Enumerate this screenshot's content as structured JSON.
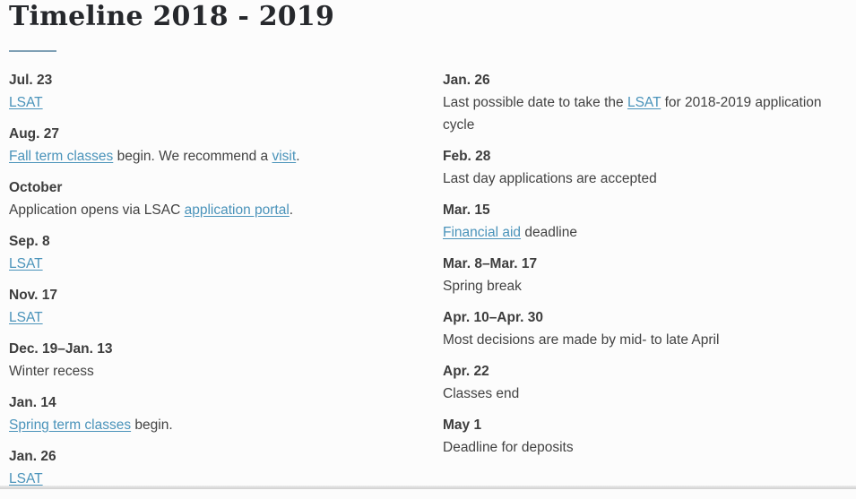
{
  "page": {
    "title": "Timeline 2018 - 2019",
    "colors": {
      "background": "#fcfcfc",
      "title": "#26282c",
      "link": "#4a93ba",
      "divider": "#7fa0b5",
      "text": "#424242"
    }
  },
  "timeline": {
    "columns": [
      {
        "entries": [
          {
            "date": "Jul. 23",
            "segments": [
              {
                "text": "LSAT",
                "link": true
              }
            ]
          },
          {
            "date": "Aug. 27",
            "segments": [
              {
                "text": "Fall term classes",
                "link": true
              },
              {
                "text": " begin. We recommend a ",
                "link": false
              },
              {
                "text": "visit",
                "link": true
              },
              {
                "text": ".",
                "link": false
              }
            ]
          },
          {
            "date": "October",
            "segments": [
              {
                "text": "Application opens via LSAC ",
                "link": false
              },
              {
                "text": "application portal",
                "link": true
              },
              {
                "text": ".",
                "link": false
              }
            ]
          },
          {
            "date": "Sep. 8",
            "segments": [
              {
                "text": "LSAT",
                "link": true
              }
            ]
          },
          {
            "date": "Nov. 17",
            "segments": [
              {
                "text": "LSAT",
                "link": true
              }
            ]
          },
          {
            "date": "Dec. 19–Jan. 13",
            "segments": [
              {
                "text": "Winter recess",
                "link": false
              }
            ]
          },
          {
            "date": "Jan. 14",
            "segments": [
              {
                "text": "Spring term classes",
                "link": true
              },
              {
                "text": " begin.",
                "link": false
              }
            ]
          },
          {
            "date": "Jan. 26",
            "segments": [
              {
                "text": "LSAT",
                "link": true
              }
            ]
          }
        ]
      },
      {
        "entries": [
          {
            "date": "Jan. 26",
            "segments": [
              {
                "text": "Last possible date to take the ",
                "link": false
              },
              {
                "text": "LSAT",
                "link": true
              },
              {
                "text": " for 2018-2019 application cycle",
                "link": false
              }
            ]
          },
          {
            "date": "Feb. 28",
            "segments": [
              {
                "text": "Last day applications are accepted",
                "link": false
              }
            ]
          },
          {
            "date": "Mar. 15",
            "segments": [
              {
                "text": "Financial aid",
                "link": true
              },
              {
                "text": " deadline",
                "link": false
              }
            ]
          },
          {
            "date": "Mar. 8–Mar. 17",
            "segments": [
              {
                "text": "Spring break",
                "link": false
              }
            ]
          },
          {
            "date": "Apr. 10–Apr. 30",
            "segments": [
              {
                "text": "Most decisions are made by mid- to late April",
                "link": false
              }
            ]
          },
          {
            "date": "Apr. 22",
            "segments": [
              {
                "text": "Classes end",
                "link": false
              }
            ]
          },
          {
            "date": "May 1",
            "segments": [
              {
                "text": "Deadline for deposits",
                "link": false
              }
            ]
          }
        ]
      }
    ]
  }
}
